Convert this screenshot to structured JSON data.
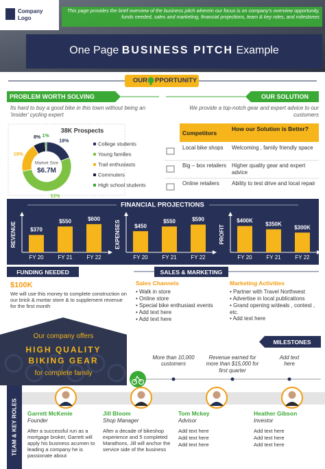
{
  "header": {
    "logo": "Company Logo",
    "overview": "This page provides the brief overview of the business pitch wherein our focus is on company's overview opportunity, funds needed, sales and marketing, financial projections, team & key roles, and milestones",
    "title": {
      "prefix": "One Page",
      "bold": "BUSINESS PITCH",
      "suffix": "Example"
    }
  },
  "opportunity": {
    "before": "OUR",
    "after": "PPORTUNITY"
  },
  "problem": {
    "heading": "PROBLEM WORTH SOLVING",
    "text": "Its hard to buy a good bike in this town without being an 'insider' cycling expert"
  },
  "solution": {
    "heading": "OUR SOLUTION",
    "text": "We provide a top-notch gear and expert advice to our customers"
  },
  "competitors": {
    "header": [
      "Competitors",
      "How our Solution is Better?"
    ],
    "rows": [
      [
        "Local bike shops",
        "Welcoming , family friendly space"
      ],
      [
        "Big – box retailers",
        "Higher quality gear and expert advice"
      ],
      [
        "Online retailers",
        "Ability to test drive  and local repair"
      ]
    ]
  },
  "financial": {
    "title": "FINANCIAL PROJECTIONS"
  },
  "chart_data": [
    {
      "type": "pie",
      "title": "38K Prospects",
      "center_label": "Market Size",
      "center_value": "$6.7M",
      "categories": [
        "College students",
        "Young families",
        "Trail enthusiasts",
        "Commuters",
        "High school students"
      ],
      "values": [
        19,
        53,
        19,
        8,
        1
      ],
      "value_labels": [
        "19%",
        "53%",
        "19%",
        "8%",
        "1%"
      ],
      "colors": [
        "#273056",
        "#7dc243",
        "#f5b51b",
        "#1b2140",
        "#3aa935"
      ]
    },
    {
      "type": "bar",
      "y_label": "REVENUE",
      "categories": [
        "FY 20",
        "FY 21",
        "FY 22"
      ],
      "values": [
        370,
        550,
        600
      ],
      "value_labels": [
        "$370",
        "$550",
        "$600"
      ],
      "color": "#f5b51b",
      "ylim": [
        0,
        700
      ]
    },
    {
      "type": "bar",
      "y_label": "EXPENSES",
      "categories": [
        "FY 20",
        "FY 21",
        "FY 22"
      ],
      "values": [
        450,
        550,
        590
      ],
      "value_labels": [
        "$450",
        "$550",
        "$590"
      ],
      "color": "#f5b51b",
      "ylim": [
        0,
        700
      ]
    },
    {
      "type": "bar",
      "y_label": "PROFIT",
      "categories": [
        "FY 20",
        "FY 21",
        "FY 22"
      ],
      "values": [
        400,
        350,
        300
      ],
      "value_labels": [
        "$400K",
        "$350K",
        "$300K"
      ],
      "color": "#f5b51b",
      "ylim": [
        0,
        500
      ]
    }
  ],
  "funding": {
    "heading": "FUNDING NEEDED",
    "amount": "$100K",
    "text": "We will use this money to complete construction on our brick & mortar store & to supplement revenue for the first month"
  },
  "sales": {
    "heading": "SALES & MARKETING",
    "channels": {
      "title": "Sales Channels",
      "items": [
        "Walk in store",
        "Online store",
        "Special bike enthusiast events",
        "Add text here",
        "Add text here"
      ]
    },
    "marketing": {
      "title": "Marketing Activities",
      "items": [
        "Partner with Travel  Northwest",
        "Advertise in local publications",
        "Grand opening w/deals , contest , etc.",
        "Add text here"
      ]
    }
  },
  "banner": {
    "line1": "Our company offers",
    "line2": "HIGH QUALITY",
    "line3": "BIKING GEAR",
    "line4": "for complete family"
  },
  "milestones": {
    "heading": "MILESTONES",
    "items": [
      "More than 10,000 customers",
      "Revenue earned for more than $15,000 for first quarter",
      "Add text here"
    ]
  },
  "team": {
    "heading": "TEAM & KEY ROLES",
    "members": [
      {
        "name": "Garrett McKenie",
        "role": "Founder",
        "bio": "After a successful run as a mortgage broker, Garrett will apply his business acumen to leading a company he is passionate about"
      },
      {
        "name": "Jill Bloom",
        "role": "Shop Manager",
        "bio": "After a decade of bikeshop experience and 5 completed Marathons, Jill will anchor the service side of the business"
      },
      {
        "name": "Tom Mckey",
        "role": "Advisor",
        "bio": [
          "Add text here",
          "Add text here",
          "Add text here"
        ]
      },
      {
        "name": "Heather Gibson",
        "role": "Investor",
        "bio": [
          "Add text here",
          "Add text here",
          "Add text here"
        ]
      }
    ]
  }
}
